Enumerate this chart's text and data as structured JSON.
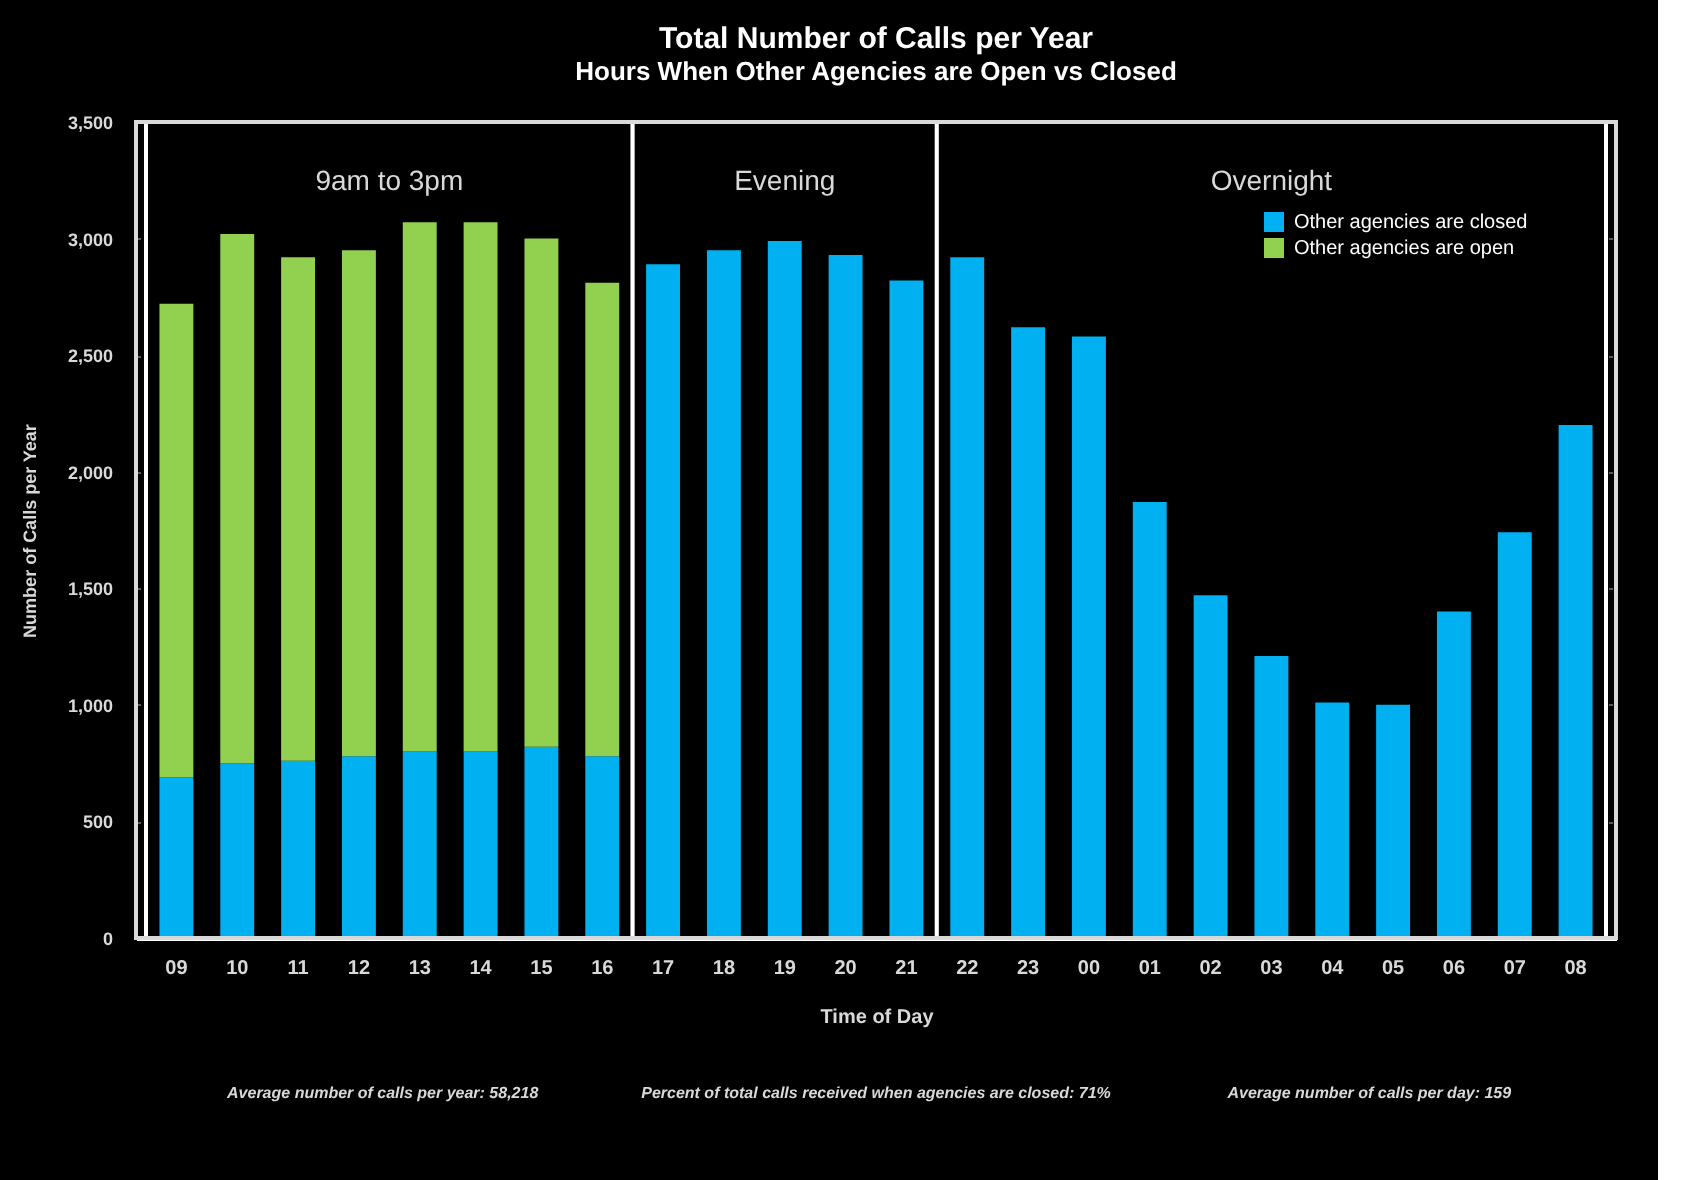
{
  "chart_data": {
    "type": "bar",
    "stacked": true,
    "title": "Total Number of Calls per Year",
    "subtitle": "Hours When Other Agencies are Open vs Closed",
    "xlabel": "Time of Day",
    "ylabel": "Number of Calls per Year",
    "categories": [
      "09",
      "10",
      "11",
      "12",
      "13",
      "14",
      "15",
      "16",
      "17",
      "18",
      "19",
      "20",
      "21",
      "22",
      "23",
      "00",
      "01",
      "02",
      "03",
      "04",
      "05",
      "06",
      "07",
      "08"
    ],
    "series": [
      {
        "name": "Other agencies are closed",
        "color": "#00b0f0",
        "values": [
          690,
          750,
          760,
          780,
          800,
          800,
          820,
          780,
          2890,
          2950,
          2990,
          2930,
          2820,
          2920,
          2620,
          2580,
          1870,
          1470,
          1210,
          1010,
          1000,
          1400,
          1740,
          2200
        ]
      },
      {
        "name": "Other agencies are open",
        "color": "#92d050",
        "values": [
          2030,
          2270,
          2160,
          2170,
          2270,
          2270,
          2180,
          2030,
          null,
          null,
          null,
          null,
          null,
          null,
          null,
          null,
          null,
          null,
          null,
          null,
          null,
          null,
          null,
          null
        ]
      }
    ],
    "ylim": [
      0,
      3500
    ],
    "yticks": [
      0,
      {
        "value": 500,
        "label": "500"
      },
      {
        "value": 1000,
        "label": "1,000"
      },
      {
        "value": 1500,
        "label": "1,500"
      },
      {
        "value": 2000,
        "label": "2,000"
      },
      {
        "value": 2500,
        "label": "2,500"
      },
      {
        "value": 3000,
        "label": "3,000"
      },
      {
        "value": 3500,
        "label": "3,500"
      }
    ],
    "grid": "y",
    "legend": "top right",
    "bands": [
      {
        "axis": "x",
        "from": "09",
        "to": "16",
        "label": "9am to 3pm",
        "color": "#ffffff"
      },
      {
        "axis": "x",
        "from": "17",
        "to": "21",
        "label": "Evening",
        "color": "#ffffff"
      },
      {
        "axis": "x",
        "from": "22",
        "to": "08",
        "label": "Overnight",
        "color": "#ffffff"
      }
    ],
    "annotations": [
      "Average number of calls per year: 58,218",
      "Percent of total calls received when agencies are closed: 71%",
      "Average number of calls per day: 159"
    ]
  }
}
